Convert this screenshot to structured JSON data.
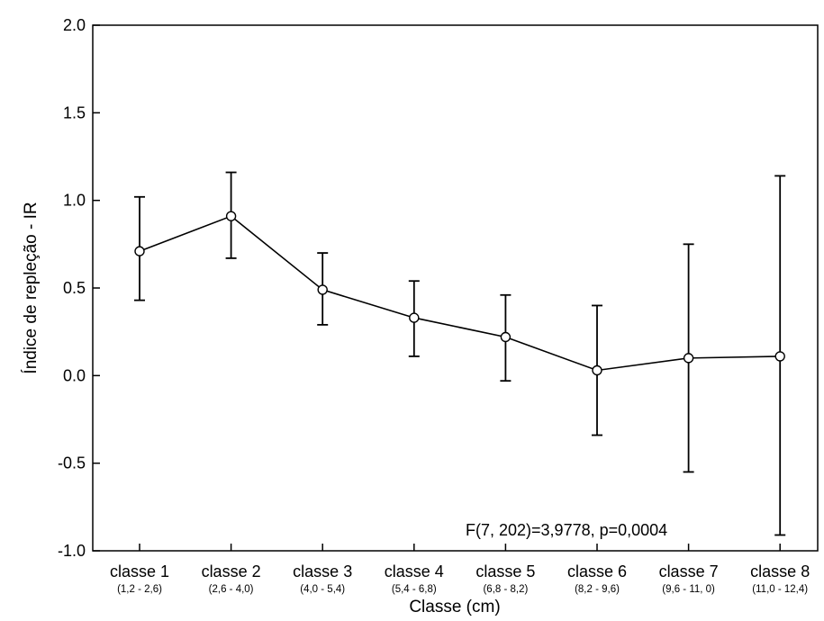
{
  "chart_data": {
    "type": "line",
    "title": "",
    "xlabel": "Classe  (cm)",
    "ylabel": "Índice de repleção - IR",
    "categories": [
      "classe 1",
      "classe 2",
      "classe 3",
      "classe 4",
      "classe 5",
      "classe 6",
      "classe 7",
      "classe 8"
    ],
    "subcategories": [
      "(1,2 - 2,6)",
      "(2,6 - 4,0)",
      "(4,0 - 5,4)",
      "(5,4 - 6,8)",
      "(6,8 - 8,2)",
      "(8,2 - 9,6)",
      "(9,6 - 11, 0)",
      "(11,0 - 12,4)"
    ],
    "series": [
      {
        "values": [
          0.71,
          0.91,
          0.49,
          0.33,
          0.22,
          0.03,
          0.1,
          0.11
        ],
        "error_low": [
          0.43,
          0.67,
          0.29,
          0.11,
          -0.03,
          -0.34,
          -0.55,
          -0.91
        ],
        "error_high": [
          1.02,
          1.16,
          0.7,
          0.54,
          0.46,
          0.4,
          0.75,
          1.14
        ]
      }
    ],
    "ylim": [
      -1.0,
      2.0
    ],
    "yticks": [
      "-1.0",
      "-0.5",
      "0.0",
      "0.5",
      "1.0",
      "1.5",
      "2.0"
    ],
    "annotation": "F(7, 202)=3,9778, p=0,0004",
    "grid": false,
    "legend": "none"
  }
}
